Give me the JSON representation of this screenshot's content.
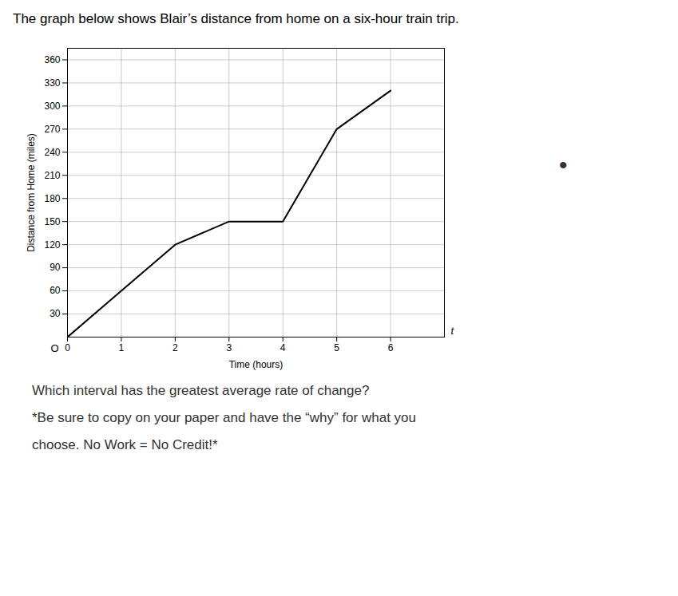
{
  "chart_data": {
    "type": "line",
    "title": "The graph below shows Blair’s distance from home on a six-hour train trip.",
    "x_label": "Time (hours)",
    "y_label": "Distance from Home (miles)",
    "x": [
      0,
      1,
      2,
      3,
      4,
      5,
      6
    ],
    "values": [
      0,
      60,
      120,
      150,
      150,
      270,
      320
    ],
    "color": "#000000",
    "xlim": [
      0,
      7.0
    ],
    "ylim": [
      0,
      375
    ],
    "xticks": [
      0,
      1,
      2,
      3,
      4,
      5,
      6
    ],
    "yticks": [
      30,
      60,
      90,
      120,
      150,
      180,
      210,
      240,
      270,
      300,
      330,
      360
    ],
    "grid": true,
    "annotations": [
      "O",
      "t",
      "Which interval has the greatest average rate of change?",
      "*Be sure to copy on your paper and have the “why” for what you",
      "choose. No Work = No Credit!*",
      "•"
    ]
  }
}
